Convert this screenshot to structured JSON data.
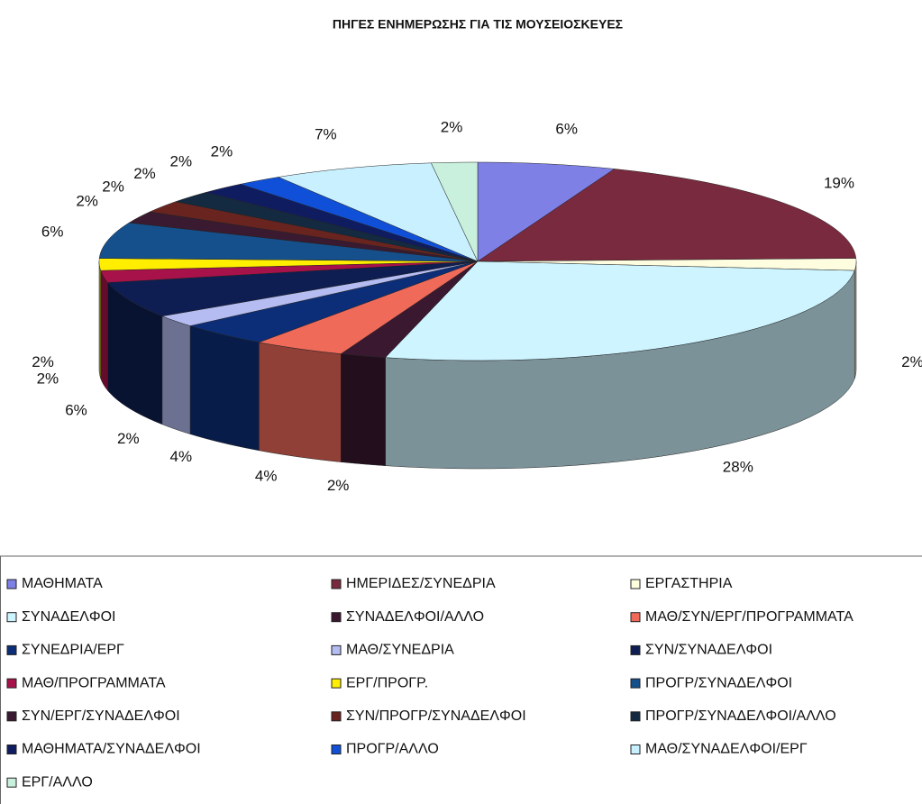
{
  "chart_data": {
    "type": "pie",
    "title": "ΠΗΓΕΣ ΕΝΗΜΕΡΩΣΗΣ ΓΙΑ ΤΙΣ ΜΟΥΣΕΙΟΣΚΕΥΕΣ",
    "categories": [
      "ΜΑΘΗΜΑΤΑ",
      "ΗΜΕΡΙΔΕΣ/ΣΥΝΕΔΡΙΑ",
      "ΕΡΓΑΣΤΗΡΙΑ",
      "ΣΥΝΑΔΕΛΦΟΙ",
      "ΣΥΝΑΔΕΛΦΟΙ/ΑΛΛΟ",
      "ΜΑΘ/ΣΥΝ/ΕΡΓ/ΠΡΟΓΡΑΜΜΑΤΑ",
      "ΣΥΝΕΔΡΙΑ/ΕΡΓ",
      "ΜΑΘ/ΣΥΝΕΔΡΙΑ",
      "ΣΥΝ/ΣΥΝΑΔΕΛΦΟΙ",
      "ΜΑΘ/ΠΡΟΓΡΑΜΜΑΤΑ",
      "ΕΡΓ/ΠΡΟΓΡ.",
      "ΠΡΟΓΡ/ΣΥΝΑΔΕΛΦΟΙ",
      "ΣΥΝ/ΕΡΓ/ΣΥΝΑΔΕΛΦΟΙ",
      "ΣΥΝ/ΠΡΟΓΡ/ΣΥΝΑΔΕΛΦΟΙ",
      "ΠΡΟΓΡ/ΣΥΝΑΔΕΛΦΟΙ/ΑΛΛΟ",
      "ΜΑΘΗΜΑΤΑ/ΣΥΝΑΔΕΛΦΟΙ",
      "ΠΡΟΓΡ/ΑΛΛΟ",
      "ΜΑΘ/ΣΥΝΑΔΕΛΦΟΙ/ΕΡΓ",
      "ΕΡΓ/ΑΛΛΟ"
    ],
    "values": [
      6,
      19,
      2,
      28,
      2,
      4,
      4,
      2,
      6,
      2,
      2,
      6,
      2,
      2,
      2,
      2,
      2,
      7,
      2
    ],
    "value_labels": [
      "6%",
      "19%",
      "2%",
      "28%",
      "2%",
      "4%",
      "4%",
      "2%",
      "6%",
      "2%",
      "2%",
      "6%",
      "2%",
      "2%",
      "2%",
      "2%",
      "2%",
      "7%",
      "2%"
    ],
    "colors": [
      "#7e80e6",
      "#7a2a3e",
      "#fffde0",
      "#cdf4ff",
      "#3a1830",
      "#f06a5a",
      "#0c2e78",
      "#b4bcf2",
      "#0e1e52",
      "#a8124a",
      "#ffee00",
      "#16508c",
      "#3a1a30",
      "#6a2420",
      "#142a40",
      "#101c60",
      "#1050d8",
      "#c8f0ff",
      "#c8f0dc"
    ]
  }
}
